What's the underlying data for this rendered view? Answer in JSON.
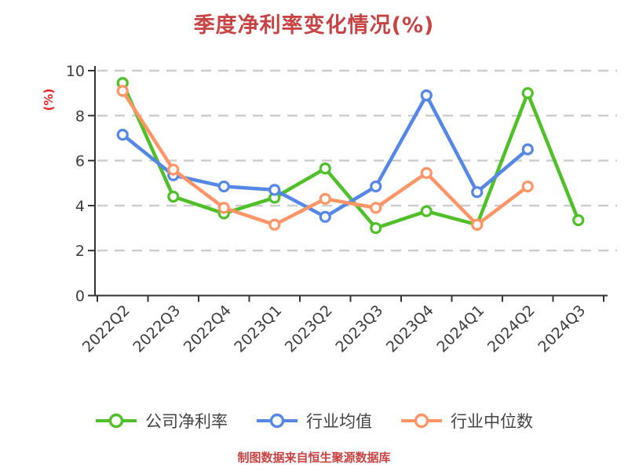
{
  "title": {
    "text": "季度净利率变化情况(%)",
    "color": "#C84444"
  },
  "y_axis_label": {
    "text": "(%)",
    "color": "#EE2222"
  },
  "footer": {
    "text": "制图数据来自恒生聚源数据库",
    "color": "#C84444"
  },
  "style": {
    "background": "#FFFFFF",
    "grid_color": "#CCCCCC",
    "axis_color": "#333333",
    "tick_label_color": "#3D3D3D",
    "legend_text_color": "#444444",
    "marker_fill": "#FFFFFF"
  },
  "chart_data": {
    "type": "line",
    "title": "季度净利率变化情况(%)",
    "xlabel": "",
    "ylabel": "(%)",
    "ylim": [
      0,
      10
    ],
    "yticks": [
      0,
      2,
      4,
      6,
      8,
      10
    ],
    "grid": "horizontal-dashed",
    "legend_position": "bottom",
    "categories": [
      "2022Q2",
      "2022Q3",
      "2022Q4",
      "2023Q1",
      "2023Q2",
      "2023Q3",
      "2023Q4",
      "2024Q1",
      "2024Q2",
      "2024Q3"
    ],
    "series": [
      {
        "name": "公司净利率",
        "color": "#4FC027",
        "values": [
          9.45,
          4.4,
          3.65,
          4.35,
          5.65,
          3.0,
          3.75,
          3.15,
          9.0,
          3.35
        ]
      },
      {
        "name": "行业均值",
        "color": "#5587E6",
        "values": [
          7.15,
          5.35,
          4.85,
          4.7,
          3.5,
          4.85,
          8.9,
          4.6,
          6.5,
          null
        ]
      },
      {
        "name": "行业中位数",
        "color": "#FF9466",
        "values": [
          9.1,
          5.6,
          3.9,
          3.15,
          4.3,
          3.9,
          5.45,
          3.15,
          4.85,
          null
        ]
      }
    ]
  }
}
